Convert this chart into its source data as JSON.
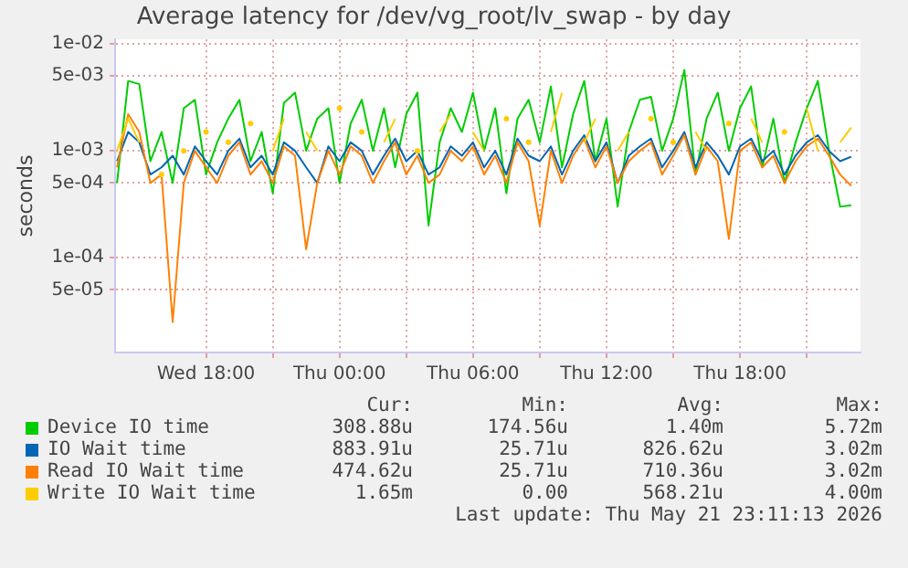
{
  "chart_data": {
    "type": "line",
    "title": "Average latency for /dev/vg_root/lv_swap - by day",
    "ylabel": "seconds",
    "log": "y",
    "grid": true,
    "legend": "bottom",
    "marker": "none",
    "line_style": "solid",
    "xlim": [
      "2026-05-20T13:55",
      "2026-05-21T23:25"
    ],
    "xticks": [
      {
        "value": "2026-05-20T18:00",
        "label": "Wed 18:00"
      },
      {
        "value": "2026-05-20T21:00",
        "label": null
      },
      {
        "value": "2026-05-21T00:00",
        "label": "Thu 00:00"
      },
      {
        "value": "2026-05-21T03:00",
        "label": null
      },
      {
        "value": "2026-05-21T06:00",
        "label": "Thu 06:00"
      },
      {
        "value": "2026-05-21T09:00",
        "label": null
      },
      {
        "value": "2026-05-21T12:00",
        "label": "Thu 12:00"
      },
      {
        "value": "2026-05-21T15:00",
        "label": null
      },
      {
        "value": "2026-05-21T18:00",
        "label": "Thu 18:00"
      },
      {
        "value": "2026-05-21T21:00",
        "label": null
      }
    ],
    "ylim": [
      1.3e-05,
      0.011
    ],
    "yticks": [
      {
        "value": 5e-05,
        "label": "5e-05"
      },
      {
        "value": 0.0001,
        "label": "1e-04"
      },
      {
        "value": 0.0005,
        "label": "5e-04"
      },
      {
        "value": 0.001,
        "label": "1e-03"
      },
      {
        "value": 0.005,
        "label": "5e-03"
      },
      {
        "value": 0.01,
        "label": "1e-02"
      }
    ],
    "x": [
      "2026-05-20T14:00",
      "2026-05-20T14:30",
      "2026-05-20T15:00",
      "2026-05-20T15:30",
      "2026-05-20T16:00",
      "2026-05-20T16:30",
      "2026-05-20T17:00",
      "2026-05-20T17:30",
      "2026-05-20T18:00",
      "2026-05-20T18:30",
      "2026-05-20T19:00",
      "2026-05-20T19:30",
      "2026-05-20T20:00",
      "2026-05-20T20:30",
      "2026-05-20T21:00",
      "2026-05-20T21:30",
      "2026-05-20T22:00",
      "2026-05-20T22:30",
      "2026-05-20T23:00",
      "2026-05-20T23:30",
      "2026-05-21T00:00",
      "2026-05-21T00:30",
      "2026-05-21T01:00",
      "2026-05-21T01:30",
      "2026-05-21T02:00",
      "2026-05-21T02:30",
      "2026-05-21T03:00",
      "2026-05-21T03:30",
      "2026-05-21T04:00",
      "2026-05-21T04:30",
      "2026-05-21T05:00",
      "2026-05-21T05:30",
      "2026-05-21T06:00",
      "2026-05-21T06:30",
      "2026-05-21T07:00",
      "2026-05-21T07:30",
      "2026-05-21T08:00",
      "2026-05-21T08:30",
      "2026-05-21T09:00",
      "2026-05-21T09:30",
      "2026-05-21T10:00",
      "2026-05-21T10:30",
      "2026-05-21T11:00",
      "2026-05-21T11:30",
      "2026-05-21T12:00",
      "2026-05-21T12:30",
      "2026-05-21T13:00",
      "2026-05-21T13:30",
      "2026-05-21T14:00",
      "2026-05-21T14:30",
      "2026-05-21T15:00",
      "2026-05-21T15:30",
      "2026-05-21T16:00",
      "2026-05-21T16:30",
      "2026-05-21T17:00",
      "2026-05-21T17:30",
      "2026-05-21T18:00",
      "2026-05-21T18:30",
      "2026-05-21T19:00",
      "2026-05-21T19:30",
      "2026-05-21T20:00",
      "2026-05-21T20:30",
      "2026-05-21T21:00",
      "2026-05-21T21:30",
      "2026-05-21T22:00",
      "2026-05-21T22:30",
      "2026-05-21T23:00"
    ],
    "series": [
      {
        "name": "Device IO time",
        "color": "#00cc00",
        "values": [
          0.0005,
          0.0045,
          0.0042,
          0.0008,
          0.0015,
          0.0005,
          0.0025,
          0.003,
          0.0006,
          0.0012,
          0.002,
          0.003,
          0.0008,
          0.0015,
          0.0004,
          0.0028,
          0.0035,
          0.001,
          0.002,
          0.0025,
          0.0005,
          0.0018,
          0.003,
          0.001,
          0.0025,
          0.0007,
          0.0022,
          0.0035,
          0.0002,
          0.0012,
          0.0025,
          0.0015,
          0.0035,
          0.001,
          0.0025,
          0.0004,
          0.002,
          0.003,
          0.0012,
          0.004,
          0.0007,
          0.0022,
          0.0045,
          0.0008,
          0.002,
          0.0003,
          0.0015,
          0.003,
          0.0032,
          0.001,
          0.002,
          0.0057,
          0.0006,
          0.002,
          0.0035,
          0.001,
          0.0025,
          0.004,
          0.0007,
          0.002,
          0.0005,
          0.0012,
          0.0025,
          0.0045,
          0.001,
          0.0003,
          0.00031
        ]
      },
      {
        "name": "IO Wait time",
        "color": "#0066b3",
        "values": [
          0.0008,
          0.0015,
          0.0012,
          0.0006,
          0.0007,
          0.0009,
          0.0006,
          0.0011,
          0.0008,
          0.0006,
          0.001,
          0.0013,
          0.0007,
          0.0009,
          0.0006,
          0.0012,
          0.001,
          0.0007,
          0.0005,
          0.0011,
          0.0008,
          0.0012,
          0.001,
          0.0006,
          0.0009,
          0.0013,
          0.0008,
          0.001,
          0.0006,
          0.0007,
          0.0011,
          0.0009,
          0.0012,
          0.0007,
          0.001,
          0.0006,
          0.0013,
          0.0009,
          0.0008,
          0.0011,
          0.0006,
          0.001,
          0.0014,
          0.0008,
          0.0012,
          0.0005,
          0.0009,
          0.0011,
          0.0013,
          0.0007,
          0.001,
          0.0015,
          0.0007,
          0.0012,
          0.0009,
          0.0006,
          0.0011,
          0.0013,
          0.0008,
          0.001,
          0.0006,
          0.0009,
          0.0012,
          0.0014,
          0.001,
          0.0008,
          0.00088
        ]
      },
      {
        "name": "Read IO Wait time",
        "color": "#ff8000",
        "values": [
          0.0007,
          0.0022,
          0.0015,
          0.0005,
          0.0006,
          2.5e-05,
          0.0005,
          0.001,
          0.0007,
          0.0005,
          0.0009,
          0.0012,
          0.0006,
          0.0008,
          0.0005,
          0.0011,
          0.0009,
          0.00012,
          0.0005,
          0.001,
          0.0006,
          0.0011,
          0.0009,
          0.0005,
          0.0008,
          0.0012,
          0.0006,
          0.0009,
          0.0005,
          0.0006,
          0.001,
          0.0008,
          0.0011,
          0.0006,
          0.0009,
          0.0005,
          0.0012,
          0.0008,
          0.0002,
          0.001,
          0.0005,
          0.0009,
          0.0013,
          0.0007,
          0.0011,
          0.0005,
          0.0008,
          0.001,
          0.0012,
          0.0006,
          0.0009,
          0.0014,
          0.0006,
          0.0011,
          0.0008,
          0.00015,
          0.001,
          0.0012,
          0.0007,
          0.0009,
          0.0005,
          0.0008,
          0.0011,
          0.0013,
          0.0009,
          0.0006,
          0.00047
        ]
      },
      {
        "name": "Write IO Wait time",
        "color": "#ffcc00",
        "values": [
          0.001,
          0.002,
          0.0012,
          null,
          0.0006,
          null,
          0.001,
          null,
          0.0015,
          null,
          0.0012,
          null,
          0.0018,
          null,
          0.001,
          0.002,
          null,
          0.0015,
          0.001,
          null,
          0.0025,
          null,
          0.0015,
          null,
          0.0012,
          0.002,
          null,
          0.001,
          null,
          0.0015,
          0.0022,
          null,
          0.0015,
          0.001,
          null,
          0.002,
          null,
          0.0012,
          null,
          0.0015,
          0.0035,
          null,
          0.0012,
          0.002,
          null,
          0.001,
          0.0015,
          null,
          0.002,
          null,
          0.0012,
          null,
          0.0015,
          0.001,
          null,
          0.0018,
          null,
          0.002,
          0.0012,
          null,
          0.0015,
          null,
          0.0025,
          0.001,
          null,
          0.0012,
          0.00165
        ]
      }
    ],
    "annotations": [
      "Cur:",
      "Min:",
      "Avg:",
      "Max:",
      "308.88u",
      "174.56u",
      "1.40m",
      "5.72m",
      "883.91u",
      "25.71u",
      "826.62u",
      "3.02m",
      "474.62u",
      "25.71u",
      "710.36u",
      "3.02m",
      "1.65m",
      "0.00",
      "568.21u",
      "4.00m",
      "Last update: Thu May 21 23:11:13 2026"
    ]
  }
}
